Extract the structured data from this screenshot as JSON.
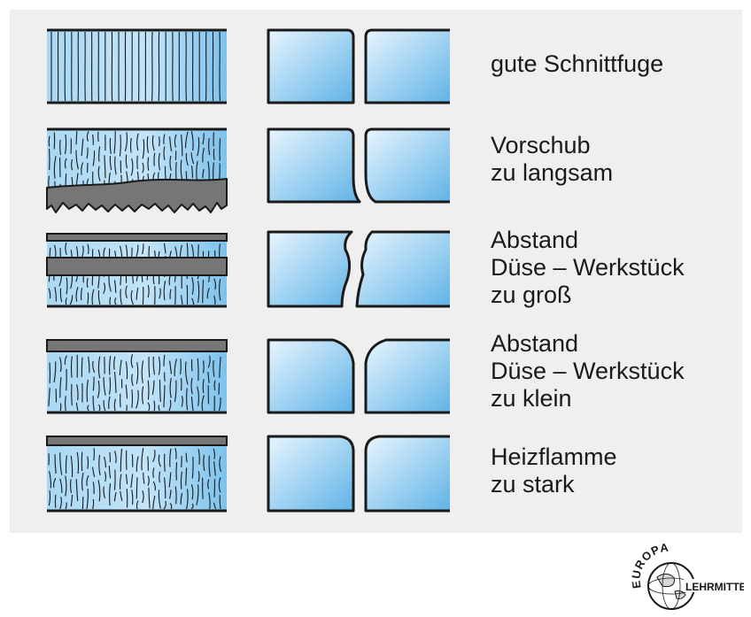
{
  "rows": [
    {
      "id": "good",
      "lines": [
        "gute Schnittfuge"
      ]
    },
    {
      "id": "slow-feed",
      "lines": [
        "Vorschub",
        "zu langsam"
      ]
    },
    {
      "id": "gap-large",
      "lines": [
        "Abstand",
        "Düse – Werkstück",
        "zu groß"
      ]
    },
    {
      "id": "gap-small",
      "lines": [
        "Abstand",
        "Düse – Werkstück",
        "zu klein"
      ]
    },
    {
      "id": "flame-hot",
      "lines": [
        "Heizflamme",
        "zu stark"
      ]
    }
  ],
  "logo": {
    "top": "EUROPA",
    "bottom": "LEHRMITTEL"
  },
  "colors": {
    "panel": "#efefef",
    "blue_light": "#e6f4fd",
    "blue_dark": "#5fb4e8",
    "slag": "#767676",
    "outline": "#1a1a1a"
  }
}
